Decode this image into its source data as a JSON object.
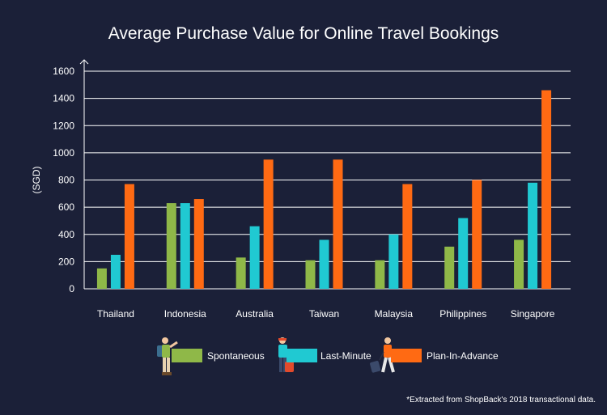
{
  "chart_data": {
    "type": "bar",
    "title": "Average Purchase Value for Online Travel Bookings",
    "ylabel": "(SGD)",
    "xlabel": "",
    "ylim": [
      0,
      1600
    ],
    "yticks": [
      0,
      200,
      400,
      600,
      800,
      1000,
      1200,
      1400,
      1600
    ],
    "grid": true,
    "legend_position": "bottom",
    "categories": [
      "Thailand",
      "Indonesia",
      "Australia",
      "Taiwan",
      "Malaysia",
      "Philippines",
      "Singapore"
    ],
    "series": [
      {
        "name": "Spontaneous",
        "color": "#8fb848",
        "values": [
          150,
          630,
          230,
          210,
          210,
          310,
          360
        ]
      },
      {
        "name": "Last-Minute",
        "color": "#20c9d2",
        "values": [
          250,
          630,
          460,
          360,
          400,
          520,
          780
        ]
      },
      {
        "name": "Plan-In-Advance",
        "color": "#ff6a13",
        "values": [
          770,
          660,
          950,
          950,
          770,
          800,
          1460
        ]
      }
    ],
    "footnote": "*Extracted from ShopBack's 2018 transactional data."
  },
  "legend_icons": [
    "hiker-person-icon",
    "suitcase-person-icon",
    "rolling-luggage-person-icon"
  ]
}
